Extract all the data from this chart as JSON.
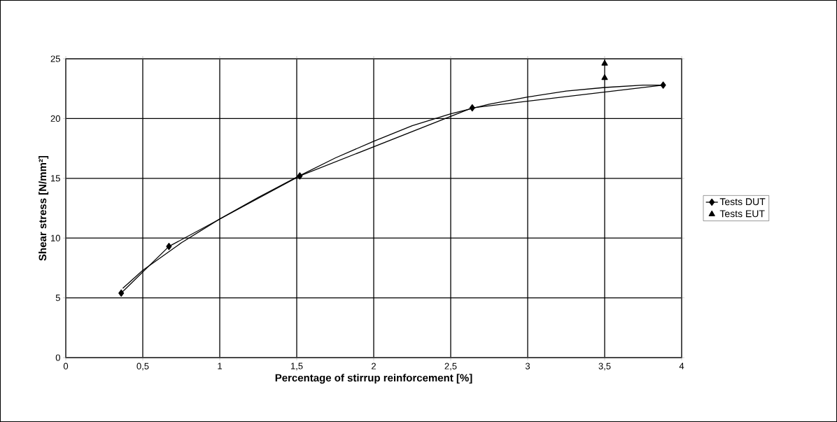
{
  "chart_data": {
    "type": "line",
    "xlabel": "Percentage of stirrup reinforcement [%]",
    "ylabel": "Shear stress [N/mm²]",
    "xlim": [
      0,
      4
    ],
    "ylim": [
      0,
      25
    ],
    "xticks": [
      0,
      {
        "value": 0.5,
        "label": "0,5"
      },
      1,
      {
        "value": 1.5,
        "label": "1,5"
      },
      2,
      {
        "value": 2.5,
        "label": "2,5"
      },
      3,
      {
        "value": 3.5,
        "label": "3,5"
      },
      4
    ],
    "yticks": [
      0,
      5,
      10,
      15,
      20,
      25
    ],
    "grid": true,
    "legend": "right",
    "series": [
      {
        "name": "Tests DUT",
        "color": "#000000",
        "marker": "diamond",
        "x": [
          0.36,
          0.67,
          1.52,
          2.64,
          3.88
        ],
        "values": [
          5.4,
          9.3,
          15.2,
          20.9,
          22.8
        ]
      },
      {
        "name": "Tests EUT",
        "type": "scatter",
        "color": "#000000",
        "marker": "triangle",
        "x": [
          3.5,
          3.5
        ],
        "values": [
          24.6,
          23.4
        ]
      },
      {
        "color": "#000000",
        "marker": "none",
        "x": [
          0.37,
          0.5,
          0.75,
          1,
          1.25,
          1.5,
          1.75,
          2,
          2.25,
          2.5,
          2.75,
          3,
          3.25,
          3.5,
          3.75,
          3.88
        ],
        "values": [
          5.8,
          7.3,
          9.6,
          11.6,
          13.4,
          15.1,
          16.7,
          18.1,
          19.4,
          20.4,
          21.2,
          21.8,
          22.3,
          22.6,
          22.8,
          22.8
        ]
      }
    ]
  }
}
